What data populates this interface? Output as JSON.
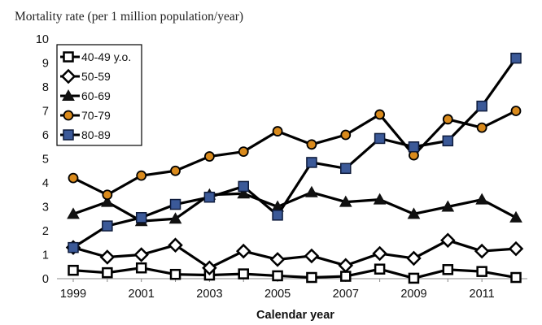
{
  "chart_data": {
    "type": "line",
    "ylabel": "Mortality rate (per 1 million population/year)",
    "xlabel": "Calendar year",
    "x": [
      1999,
      2000,
      2001,
      2002,
      2003,
      2004,
      2005,
      2006,
      2007,
      2008,
      2009,
      2010,
      2011,
      2012
    ],
    "xticks": [
      1999,
      2001,
      2003,
      2005,
      2007,
      2009,
      2011
    ],
    "ylim": [
      0,
      10
    ],
    "yticks": [
      0,
      1,
      2,
      3,
      4,
      5,
      6,
      7,
      8,
      9,
      10
    ],
    "grid": false,
    "legend_position": "top-left",
    "series": [
      {
        "name": "40-49 y.o.",
        "marker": "square-open",
        "values": [
          0.35,
          0.25,
          0.45,
          0.18,
          0.15,
          0.2,
          0.12,
          0.05,
          0.1,
          0.4,
          0.02,
          0.38,
          0.3,
          0.05
        ]
      },
      {
        "name": "50-59",
        "marker": "diamond-open",
        "values": [
          1.3,
          0.9,
          1.0,
          1.4,
          0.45,
          1.15,
          0.8,
          0.95,
          0.55,
          1.05,
          0.85,
          1.6,
          1.15,
          1.25
        ]
      },
      {
        "name": "60-69",
        "marker": "triangle",
        "values": [
          2.7,
          3.2,
          2.4,
          2.5,
          3.5,
          3.55,
          3.0,
          3.6,
          3.2,
          3.3,
          2.7,
          3.0,
          3.3,
          2.55
        ]
      },
      {
        "name": "70-79",
        "marker": "circle-orange",
        "values": [
          4.2,
          3.5,
          4.3,
          4.5,
          5.1,
          5.3,
          6.15,
          5.6,
          6.0,
          6.85,
          5.15,
          6.65,
          6.3,
          7.0
        ]
      },
      {
        "name": "80-89",
        "marker": "square-blue",
        "values": [
          1.3,
          2.2,
          2.55,
          3.1,
          3.4,
          3.85,
          2.65,
          4.85,
          4.6,
          5.85,
          5.5,
          5.75,
          7.2,
          9.2
        ]
      }
    ]
  }
}
